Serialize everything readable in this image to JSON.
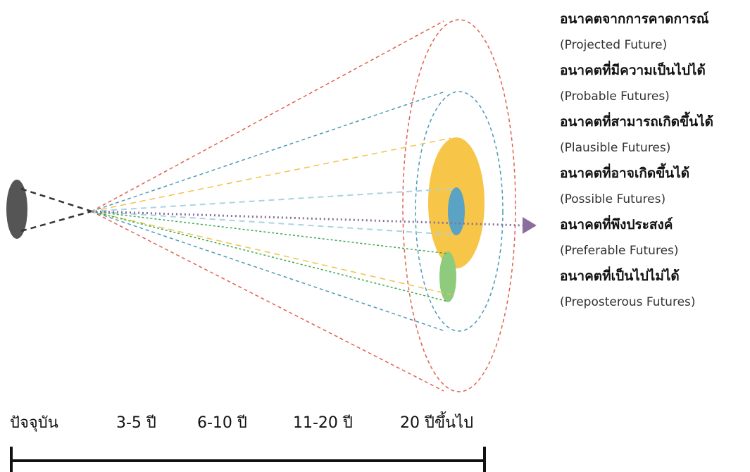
{
  "legend": {
    "items": [
      {
        "thai": "อนาคตจากการคาดการณ์",
        "english": "(Projected Future)"
      },
      {
        "thai": "อนาคตที่มีความเป็นไปได้",
        "english": "(Probable Futures)"
      },
      {
        "thai": "อนาคตที่สามารถเกิดขึ้นได้",
        "english": "(Plausible Futures)"
      },
      {
        "thai": "อนาคตที่อาจเกิดขึ้นได้",
        "english": "(Possible Futures)"
      },
      {
        "thai": "อนาคตที่พึงประสงค์",
        "english": "(Preferable Futures)"
      },
      {
        "thai": "อนาคตที่เป็นไปไม่ได้",
        "english": "(Preposterous Futures)"
      }
    ]
  },
  "timeline": {
    "labels": [
      "ปัจจุบัน",
      "3-5 ปี",
      "6-10 ปี",
      "11-20 ปี",
      "20 ปีขึ้นไป"
    ]
  },
  "colors": {
    "outer_cone": "#e0614f",
    "probable_cone": "#4d99b8",
    "plausible_cone": "#f0c24a",
    "possible_area": "#f7c547",
    "preferable_area": "#8fcb7c",
    "projected_arrow": "#8a6f9e",
    "eye": "#555555"
  }
}
